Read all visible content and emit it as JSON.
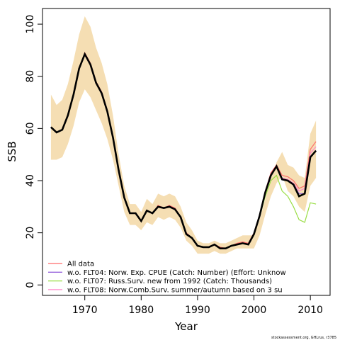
{
  "chart_data": {
    "type": "line",
    "xlabel": "Year",
    "ylabel": "SSB",
    "xlim": [
      1962.5,
      2013.5
    ],
    "ylim": [
      -4,
      106
    ],
    "x_ticks": [
      1970,
      1980,
      1990,
      2000,
      2010
    ],
    "y_ticks": [
      0,
      20,
      40,
      60,
      80,
      100
    ],
    "grid": false,
    "legend_position": "bottom-left",
    "x": [
      1964,
      1965,
      1966,
      1967,
      1968,
      1969,
      1970,
      1971,
      1972,
      1973,
      1974,
      1975,
      1976,
      1977,
      1978,
      1979,
      1980,
      1981,
      1982,
      1983,
      1984,
      1985,
      1986,
      1987,
      1988,
      1989,
      1990,
      1991,
      1992,
      1993,
      1994,
      1995,
      1996,
      1997,
      1998,
      1999,
      2000,
      2001,
      2002,
      2003,
      2004,
      2005,
      2006,
      2007,
      2008,
      2009,
      2010,
      2011
    ],
    "confidence_band": {
      "color": "#f5deb3",
      "upper": [
        73,
        69,
        71,
        77,
        86,
        96,
        103,
        99,
        91,
        85,
        77,
        65,
        50,
        38,
        31,
        31,
        28,
        33,
        31,
        35,
        34,
        35,
        34,
        30,
        24,
        21,
        17,
        16,
        16,
        17,
        16,
        16,
        17,
        18,
        19,
        19,
        19,
        25,
        33,
        41,
        47,
        51,
        46,
        45,
        42,
        41,
        58,
        63
      ],
      "lower": [
        48,
        48,
        49,
        54,
        61,
        70,
        75,
        72,
        67,
        62,
        56,
        48,
        38,
        28,
        23,
        23,
        21,
        24,
        23,
        26,
        25,
        26,
        25,
        22,
        17,
        15,
        12,
        12,
        12,
        13,
        12,
        12,
        13,
        14,
        14,
        14,
        14,
        19,
        27,
        34,
        39,
        42,
        36,
        34,
        30,
        28,
        38,
        41
      ]
    },
    "series": [
      {
        "name": "All data",
        "color": "#ff6b6b",
        "values": [
          60.5,
          58.5,
          59.5,
          65,
          73,
          83,
          89,
          85,
          78,
          74,
          67,
          57,
          44,
          33.5,
          27.5,
          27.5,
          24.5,
          28.5,
          27.5,
          30.5,
          29.5,
          30.5,
          29.5,
          26,
          20,
          18,
          15,
          14.5,
          14.5,
          15.5,
          14.5,
          14,
          15,
          16,
          16.5,
          16,
          20,
          27,
          36,
          43,
          46,
          42,
          41.5,
          40,
          37,
          38,
          52,
          55
        ]
      },
      {
        "name": "w.o. FLT04:       Norw.       Exp. CPUE       (Catch:    Number)  (Effort:    Unknow",
        "color": "#9966dd",
        "values": [
          60.5,
          58.5,
          59.5,
          65,
          73,
          83,
          88.5,
          84.5,
          77.5,
          73.5,
          66.5,
          56.5,
          44,
          33.5,
          27.5,
          27.5,
          24.5,
          28.5,
          27.5,
          30,
          29.5,
          30,
          29,
          26,
          19.5,
          18,
          15,
          14.5,
          14.5,
          15.5,
          14,
          14,
          15,
          15.5,
          16,
          15.5,
          19.5,
          26.5,
          35.5,
          42,
          45.5,
          40.5,
          40,
          38.5,
          35,
          35,
          49,
          51.5
        ]
      },
      {
        "name": "w.o. FLT07:       Russ.Surv.       new from        1992        (Catch:    Thousands)",
        "color": "#99dd44",
        "values": [
          60.5,
          58.5,
          59.5,
          65,
          73,
          83,
          88.5,
          84.5,
          77.5,
          73.5,
          66.5,
          56.5,
          44,
          33.5,
          27.5,
          27.5,
          24.5,
          28.5,
          27.5,
          30,
          29.5,
          30,
          29,
          26,
          19.5,
          18,
          15,
          14.5,
          14.5,
          15.5,
          14,
          14,
          15,
          15.5,
          16,
          15.5,
          19,
          26,
          34,
          40,
          42,
          36,
          34,
          30,
          25,
          24,
          31.5,
          31
        ]
      },
      {
        "name": "w.o. FLT08:       Norw.Comb.Surv.    summer/autumn     based      on     3       su",
        "color": "#ff88cc",
        "values": [
          60.5,
          58.5,
          59.5,
          65,
          73,
          83,
          88.5,
          84.5,
          77.5,
          73.5,
          66.5,
          56.5,
          44,
          33.5,
          27.5,
          27.5,
          24.5,
          28.5,
          27.5,
          30,
          29.5,
          30,
          29,
          26,
          19.5,
          18,
          15,
          14.5,
          14.5,
          15.5,
          14,
          14,
          15,
          15.5,
          16,
          15.5,
          19.5,
          27,
          36,
          42.5,
          45.5,
          41,
          40.5,
          39,
          36,
          37,
          50.5,
          53
        ]
      }
    ],
    "main_line": {
      "color": "#000000",
      "values": [
        60.5,
        58.5,
        59.5,
        65,
        73,
        83,
        88.5,
        84.5,
        77.5,
        73.5,
        66.5,
        56.5,
        44,
        33.5,
        27.5,
        27.5,
        24.5,
        28.5,
        27.5,
        30,
        29.5,
        30,
        29,
        26,
        19.5,
        18,
        15,
        14.5,
        14.5,
        15.5,
        14,
        14,
        15,
        15.5,
        16,
        15.5,
        19.5,
        26.5,
        35.5,
        42,
        45.5,
        40.5,
        40,
        38.5,
        34,
        35,
        49,
        51.5
      ]
    },
    "credit": "stockassessment.org, GHLrus, r3785"
  }
}
